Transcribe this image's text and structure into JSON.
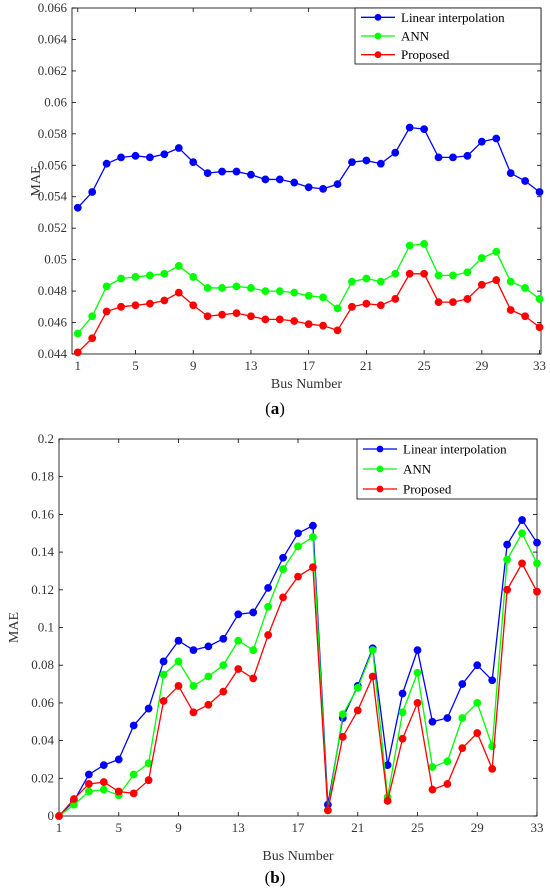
{
  "chart_data": [
    {
      "type": "line",
      "caption": "(a)",
      "xlabel": "Bus Number",
      "ylabel": "MAE",
      "xlim": [
        0.6,
        33.1
      ],
      "ylim": [
        0.044,
        0.066
      ],
      "xticks": [
        1,
        5,
        9,
        13,
        17,
        21,
        25,
        29,
        33
      ],
      "yticks": [
        0.044,
        0.046,
        0.048,
        0.05,
        0.052,
        0.054,
        0.056,
        0.058,
        0.06,
        0.062,
        0.064,
        0.066
      ],
      "ytick_labels": [
        "0.044",
        "0.046",
        "0.048",
        "0.05",
        "0.052",
        "0.054",
        "0.056",
        "0.058",
        "0.06",
        "0.062",
        "0.064",
        "0.066"
      ],
      "legend_position": "top-right",
      "x": [
        1,
        2,
        3,
        4,
        5,
        6,
        7,
        8,
        9,
        10,
        11,
        12,
        13,
        14,
        15,
        16,
        17,
        18,
        19,
        20,
        21,
        22,
        23,
        24,
        25,
        26,
        27,
        28,
        29,
        30,
        31,
        32,
        33
      ],
      "series": [
        {
          "name": "Linear interpolation",
          "color": "#0000ff",
          "values": [
            0.0533,
            0.0543,
            0.0561,
            0.0565,
            0.0566,
            0.0565,
            0.0567,
            0.0571,
            0.0562,
            0.0555,
            0.0556,
            0.0556,
            0.0554,
            0.0551,
            0.0551,
            0.0549,
            0.0546,
            0.0545,
            0.0548,
            0.0562,
            0.0563,
            0.0561,
            0.0568,
            0.0584,
            0.0583,
            0.0565,
            0.0565,
            0.0566,
            0.0575,
            0.0577,
            0.0555,
            0.055,
            0.0543
          ]
        },
        {
          "name": "ANN",
          "color": "#00ff00",
          "values": [
            0.0453,
            0.0464,
            0.0483,
            0.0488,
            0.0489,
            0.049,
            0.0491,
            0.0496,
            0.0489,
            0.0482,
            0.0482,
            0.0483,
            0.0482,
            0.048,
            0.048,
            0.0479,
            0.0477,
            0.0476,
            0.0469,
            0.0486,
            0.0488,
            0.0486,
            0.0491,
            0.0509,
            0.051,
            0.049,
            0.049,
            0.0492,
            0.0501,
            0.0505,
            0.0486,
            0.0482,
            0.0475
          ]
        },
        {
          "name": "Proposed",
          "color": "#ff0000",
          "values": [
            0.0441,
            0.045,
            0.0467,
            0.047,
            0.0471,
            0.0472,
            0.0474,
            0.0479,
            0.0471,
            0.0464,
            0.0465,
            0.0466,
            0.0464,
            0.0462,
            0.0462,
            0.0461,
            0.0459,
            0.0458,
            0.0455,
            0.047,
            0.0472,
            0.0471,
            0.0475,
            0.0491,
            0.0491,
            0.0473,
            0.0473,
            0.0475,
            0.0484,
            0.0487,
            0.0468,
            0.0464,
            0.0457
          ]
        }
      ]
    },
    {
      "type": "line",
      "caption": "(b)",
      "xlabel": "Bus Number",
      "ylabel": "MAE",
      "xlim": [
        1,
        33
      ],
      "ylim": [
        0,
        0.2
      ],
      "xticks": [
        1,
        5,
        9,
        13,
        17,
        21,
        25,
        29,
        33
      ],
      "yticks": [
        0,
        0.02,
        0.04,
        0.06,
        0.08,
        0.1,
        0.12,
        0.14,
        0.16,
        0.18,
        0.2
      ],
      "ytick_labels": [
        "0",
        "0.02",
        "0.04",
        "0.06",
        "0.08",
        "0.1",
        "0.12",
        "0.14",
        "0.16",
        "0.18",
        "0.2"
      ],
      "legend_position": "top-right",
      "x": [
        1,
        2,
        3,
        4,
        5,
        6,
        7,
        8,
        9,
        10,
        11,
        12,
        13,
        14,
        15,
        16,
        17,
        18,
        19,
        20,
        21,
        22,
        23,
        24,
        25,
        26,
        27,
        28,
        29,
        30,
        31,
        32,
        33
      ],
      "series": [
        {
          "name": "Linear interpolation",
          "color": "#0000ff",
          "values": [
            0,
            0.008,
            0.022,
            0.027,
            0.03,
            0.048,
            0.057,
            0.082,
            0.093,
            0.088,
            0.09,
            0.094,
            0.107,
            0.108,
            0.121,
            0.137,
            0.15,
            0.154,
            0.006,
            0.052,
            0.069,
            0.089,
            0.027,
            0.065,
            0.088,
            0.05,
            0.052,
            0.07,
            0.08,
            0.072,
            0.144,
            0.157,
            0.145
          ]
        },
        {
          "name": "ANN",
          "color": "#00ff00",
          "values": [
            0,
            0.006,
            0.013,
            0.014,
            0.011,
            0.022,
            0.028,
            0.075,
            0.082,
            0.069,
            0.074,
            0.08,
            0.093,
            0.088,
            0.111,
            0.131,
            0.143,
            0.148,
            0.003,
            0.054,
            0.068,
            0.088,
            0.01,
            0.055,
            0.076,
            0.026,
            0.029,
            0.052,
            0.06,
            0.037,
            0.136,
            0.15,
            0.134
          ]
        },
        {
          "name": "Proposed",
          "color": "#ff0000",
          "values": [
            0,
            0.009,
            0.017,
            0.018,
            0.013,
            0.012,
            0.019,
            0.061,
            0.069,
            0.055,
            0.059,
            0.066,
            0.078,
            0.073,
            0.096,
            0.116,
            0.127,
            0.132,
            0.003,
            0.042,
            0.056,
            0.074,
            0.008,
            0.041,
            0.06,
            0.014,
            0.017,
            0.036,
            0.044,
            0.025,
            0.12,
            0.134,
            0.119
          ]
        }
      ]
    }
  ]
}
